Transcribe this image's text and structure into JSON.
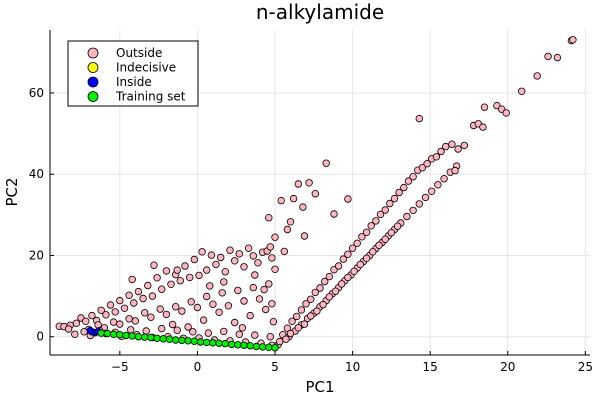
{
  "chart_data": {
    "type": "scatter",
    "title": "n-alkylamide",
    "xlabel": "PC1",
    "ylabel": "PC2",
    "xlim": [
      -9.5,
      25.3
    ],
    "ylim": [
      -4.5,
      75.5
    ],
    "xticks": [
      -5,
      0,
      5,
      10,
      15,
      20,
      25
    ],
    "yticks": [
      0,
      20,
      40,
      60
    ],
    "xtick_labels": [
      "−5",
      "0",
      "5",
      "10",
      "15",
      "20",
      "25"
    ],
    "ytick_labels": [
      "0",
      "20",
      "40",
      "60"
    ],
    "grid": true,
    "legend_position": "top-left",
    "series": [
      {
        "name": "Outside",
        "color": "#ffb6c1",
        "points": [
          [
            -8.9,
            2.6
          ],
          [
            -8.6,
            2.5
          ],
          [
            -8.2,
            2.8
          ],
          [
            -7.8,
            3.3
          ],
          [
            -7.5,
            4.6
          ],
          [
            -7.2,
            3.8
          ],
          [
            -6.8,
            5.2
          ],
          [
            -6.5,
            4.0
          ],
          [
            -6.2,
            6.5
          ],
          [
            -5.9,
            5.4
          ],
          [
            -5.6,
            7.8
          ],
          [
            -5.3,
            6.1
          ],
          [
            -5.0,
            8.9
          ],
          [
            -4.7,
            7.0
          ],
          [
            -4.4,
            10.2
          ],
          [
            -4.1,
            8.3
          ],
          [
            -3.8,
            11.1
          ],
          [
            -3.5,
            9.4
          ],
          [
            -3.2,
            12.6
          ],
          [
            -2.9,
            10.0
          ],
          [
            -2.6,
            14.5
          ],
          [
            -2.3,
            11.7
          ],
          [
            -2.0,
            16.2
          ],
          [
            -1.7,
            12.9
          ],
          [
            -1.4,
            15.3
          ],
          [
            -1.1,
            13.8
          ],
          [
            -0.8,
            17.4
          ],
          [
            -0.5,
            14.6
          ],
          [
            -0.2,
            19.0
          ],
          [
            0.1,
            15.1
          ],
          [
            0.3,
            20.9
          ],
          [
            0.6,
            16.4
          ],
          [
            0.9,
            20.1
          ],
          [
            1.2,
            17.8
          ],
          [
            1.5,
            19.5
          ],
          [
            1.8,
            16.0
          ],
          [
            2.1,
            21.3
          ],
          [
            2.4,
            18.7
          ],
          [
            2.7,
            20.4
          ],
          [
            3.0,
            17.2
          ],
          [
            3.3,
            21.8
          ],
          [
            3.6,
            19.9
          ],
          [
            3.9,
            18.2
          ],
          [
            4.2,
            20.8
          ],
          [
            4.5,
            21.1
          ],
          [
            4.8,
            19.4
          ],
          [
            5.0,
            16.6
          ],
          [
            -7.0,
            1.8
          ],
          [
            -6.0,
            2.2
          ],
          [
            -5.0,
            3.1
          ],
          [
            -4.0,
            3.9
          ],
          [
            -3.0,
            4.8
          ],
          [
            -2.0,
            5.5
          ],
          [
            -1.0,
            6.3
          ],
          [
            0.0,
            7.2
          ],
          [
            1.0,
            8.0
          ],
          [
            2.0,
            7.6
          ],
          [
            3.0,
            8.8
          ],
          [
            4.0,
            9.3
          ],
          [
            4.8,
            8.1
          ],
          [
            -6.4,
            2.9
          ],
          [
            -5.4,
            3.6
          ],
          [
            -4.4,
            4.4
          ],
          [
            -3.4,
            5.9
          ],
          [
            -2.4,
            6.8
          ],
          [
            -1.4,
            7.4
          ],
          [
            -0.4,
            8.6
          ],
          [
            0.6,
            9.9
          ],
          [
            1.6,
            10.8
          ],
          [
            2.6,
            11.4
          ],
          [
            3.6,
            12.1
          ],
          [
            4.6,
            13.0
          ],
          [
            -1.6,
            3.0
          ],
          [
            0.4,
            4.1
          ],
          [
            2.4,
            3.5
          ],
          [
            3.4,
            5.2
          ],
          [
            4.4,
            6.7
          ],
          [
            1.4,
            6.0
          ],
          [
            -0.6,
            2.4
          ],
          [
            2.9,
            2.2
          ],
          [
            4.9,
            3.7
          ],
          [
            -4.2,
            14.1
          ],
          [
            -1.3,
            16.4
          ],
          [
            0.8,
            12.5
          ],
          [
            3.7,
            15.2
          ],
          [
            -2.8,
            17.6
          ],
          [
            1.7,
            13.5
          ],
          [
            4.3,
            11.6
          ],
          [
            4.6,
            29.3
          ],
          [
            5.4,
            33.5
          ],
          [
            6.2,
            34.0
          ],
          [
            6.5,
            37.6
          ],
          [
            7.2,
            37.9
          ],
          [
            8.3,
            42.7
          ],
          [
            5.8,
            26.4
          ],
          [
            6.8,
            31.9
          ],
          [
            7.6,
            35.2
          ],
          [
            5.0,
            24.5
          ],
          [
            6.0,
            28.3
          ],
          [
            4.7,
            22.1
          ],
          [
            5.6,
            21.0
          ],
          [
            6.9,
            24.8
          ],
          [
            8.8,
            30.2
          ],
          [
            9.7,
            33.9
          ],
          [
            5.2,
            -2.0
          ],
          [
            5.5,
            0.5
          ],
          [
            5.8,
            2.1
          ],
          [
            6.1,
            3.8
          ],
          [
            6.4,
            5.0
          ],
          [
            6.7,
            6.6
          ],
          [
            7.0,
            8.1
          ],
          [
            7.3,
            9.2
          ],
          [
            7.6,
            10.9
          ],
          [
            7.9,
            12.0
          ],
          [
            8.2,
            13.6
          ],
          [
            8.5,
            14.8
          ],
          [
            8.8,
            16.5
          ],
          [
            9.1,
            17.4
          ],
          [
            9.4,
            19.1
          ],
          [
            9.7,
            20.3
          ],
          [
            10.0,
            21.8
          ],
          [
            10.3,
            23.0
          ],
          [
            10.6,
            24.6
          ],
          [
            10.9,
            25.7
          ],
          [
            11.2,
            27.3
          ],
          [
            11.5,
            28.5
          ],
          [
            11.8,
            30.1
          ],
          [
            12.1,
            31.2
          ],
          [
            12.4,
            32.8
          ],
          [
            12.7,
            34.0
          ],
          [
            13.0,
            35.5
          ],
          [
            13.3,
            36.7
          ],
          [
            13.6,
            38.3
          ],
          [
            13.9,
            39.4
          ],
          [
            14.2,
            41.0
          ],
          [
            14.5,
            41.6
          ],
          [
            14.8,
            42.6
          ],
          [
            15.1,
            43.8
          ],
          [
            15.4,
            44.3
          ],
          [
            15.7,
            45.6
          ],
          [
            16.0,
            46.8
          ],
          [
            16.4,
            47.4
          ],
          [
            16.8,
            46.2
          ],
          [
            17.2,
            47.1
          ],
          [
            5.9,
            0.0
          ],
          [
            6.3,
            1.4
          ],
          [
            6.7,
            2.9
          ],
          [
            7.1,
            4.5
          ],
          [
            7.5,
            5.8
          ],
          [
            7.9,
            7.4
          ],
          [
            8.3,
            8.9
          ],
          [
            8.7,
            10.6
          ],
          [
            9.1,
            12.1
          ],
          [
            9.5,
            13.8
          ],
          [
            9.9,
            15.2
          ],
          [
            10.3,
            16.9
          ],
          [
            10.7,
            18.5
          ],
          [
            11.1,
            20.0
          ],
          [
            11.5,
            21.7
          ],
          [
            11.9,
            23.2
          ],
          [
            12.3,
            24.8
          ],
          [
            12.7,
            26.4
          ],
          [
            13.1,
            28.0
          ],
          [
            13.5,
            29.6
          ],
          [
            13.9,
            31.1
          ],
          [
            14.3,
            32.7
          ],
          [
            14.7,
            34.3
          ],
          [
            15.1,
            35.8
          ],
          [
            15.5,
            37.4
          ],
          [
            15.9,
            38.9
          ],
          [
            16.3,
            40.5
          ],
          [
            16.7,
            42.0
          ],
          [
            5.3,
            -1.2
          ],
          [
            5.7,
            -0.6
          ],
          [
            6.0,
            0.8
          ],
          [
            6.5,
            2.2
          ],
          [
            6.9,
            3.1
          ],
          [
            7.3,
            5.1
          ],
          [
            7.7,
            6.3
          ],
          [
            8.1,
            7.9
          ],
          [
            8.5,
            9.8
          ],
          [
            8.9,
            11.2
          ],
          [
            9.3,
            13.0
          ],
          [
            9.7,
            14.6
          ],
          [
            10.1,
            16.1
          ],
          [
            10.5,
            17.8
          ],
          [
            10.9,
            19.3
          ],
          [
            11.3,
            20.9
          ],
          [
            11.7,
            22.5
          ],
          [
            12.1,
            24.0
          ],
          [
            12.5,
            25.6
          ],
          [
            12.9,
            27.2
          ],
          [
            14.3,
            53.7
          ],
          [
            16.6,
            40.9
          ],
          [
            17.8,
            52.0
          ],
          [
            18.1,
            52.4
          ],
          [
            18.4,
            51.6
          ],
          [
            18.5,
            56.5
          ],
          [
            19.3,
            56.9
          ],
          [
            19.6,
            56.0
          ],
          [
            19.9,
            55.1
          ],
          [
            20.9,
            60.4
          ],
          [
            21.9,
            64.2
          ],
          [
            22.6,
            69.0
          ],
          [
            23.2,
            68.7
          ],
          [
            24.1,
            72.9
          ],
          [
            24.2,
            73.1
          ],
          [
            -7.9,
            0.6
          ],
          [
            -6.9,
            0.3
          ],
          [
            -5.9,
            0.8
          ],
          [
            -4.9,
            0.1
          ],
          [
            -3.9,
            0.5
          ],
          [
            -2.9,
            -0.2
          ],
          [
            -1.9,
            0.0
          ],
          [
            -0.9,
            -0.4
          ],
          [
            0.1,
            -0.3
          ],
          [
            1.1,
            -0.8
          ],
          [
            2.1,
            -1.0
          ],
          [
            3.1,
            -1.3
          ],
          [
            4.1,
            -1.6
          ],
          [
            4.8,
            -2.1
          ],
          [
            -8.3,
            1.9
          ],
          [
            -7.3,
            1.2
          ],
          [
            -6.3,
            1.5
          ],
          [
            -5.3,
            1.1
          ],
          [
            -4.3,
            1.7
          ],
          [
            -3.3,
            1.4
          ],
          [
            -2.3,
            2.0
          ],
          [
            -1.3,
            1.6
          ],
          [
            -0.3,
            1.2
          ],
          [
            0.7,
            0.9
          ],
          [
            1.7,
            1.3
          ],
          [
            2.7,
            0.6
          ],
          [
            3.7,
            0.4
          ],
          [
            4.7,
            0.0
          ]
        ]
      },
      {
        "name": "Indecisive",
        "color": "#ffff00",
        "points": []
      },
      {
        "name": "Inside",
        "color": "#0000ff",
        "points": [
          [
            -6.8,
            1.2
          ],
          [
            -6.6,
            1.0
          ],
          [
            -6.4,
            1.3
          ],
          [
            -6.9,
            1.5
          ]
        ]
      },
      {
        "name": "Training set",
        "color": "#00ee00",
        "points": [
          [
            -6.2,
            0.9
          ],
          [
            -5.8,
            0.8
          ],
          [
            -5.4,
            0.6
          ],
          [
            -5.0,
            0.5
          ],
          [
            -4.6,
            0.3
          ],
          [
            -4.2,
            0.2
          ],
          [
            -3.8,
            0.0
          ],
          [
            -3.4,
            -0.1
          ],
          [
            -3.0,
            -0.2
          ],
          [
            -2.6,
            -0.4
          ],
          [
            -2.2,
            -0.5
          ],
          [
            -1.8,
            -0.6
          ],
          [
            -1.4,
            -0.8
          ],
          [
            -1.0,
            -0.9
          ],
          [
            -0.6,
            -1.0
          ],
          [
            -0.2,
            -1.1
          ],
          [
            0.2,
            -1.3
          ],
          [
            0.6,
            -1.4
          ],
          [
            1.0,
            -1.5
          ],
          [
            1.4,
            -1.6
          ],
          [
            1.8,
            -1.7
          ],
          [
            2.2,
            -1.9
          ],
          [
            2.6,
            -2.0
          ],
          [
            3.0,
            -2.1
          ],
          [
            3.4,
            -2.2
          ],
          [
            3.8,
            -2.4
          ],
          [
            4.2,
            -2.5
          ],
          [
            4.6,
            -2.6
          ],
          [
            5.0,
            -2.7
          ]
        ]
      }
    ]
  }
}
